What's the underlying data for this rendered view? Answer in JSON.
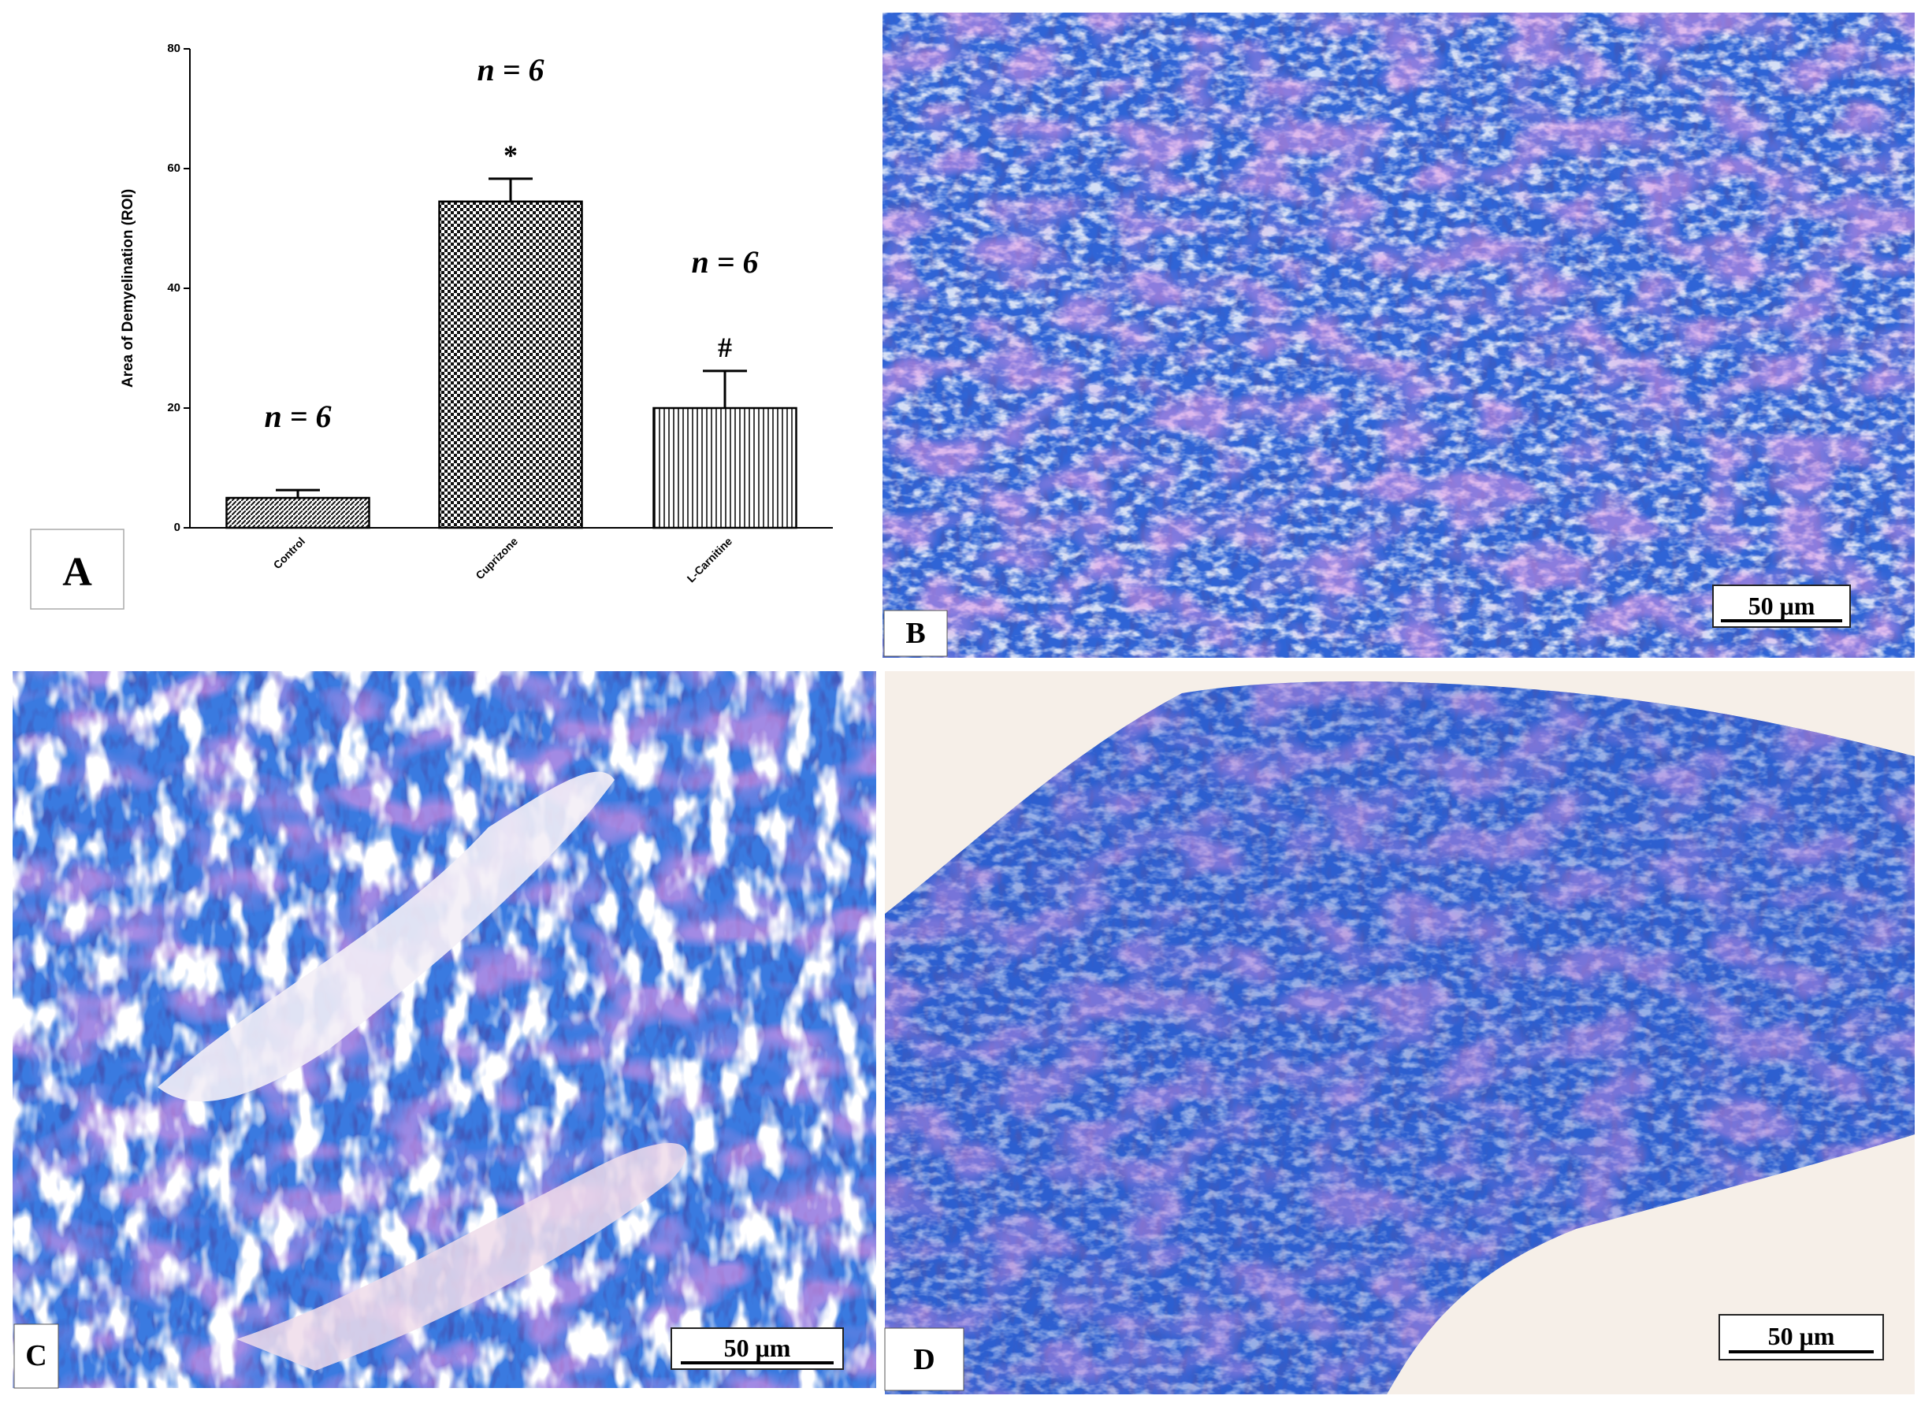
{
  "chart_data": {
    "type": "bar",
    "y_label": "Area of Demyelination (ROI)",
    "categories": [
      "Control",
      "Cuprizone",
      "L-Carnitine"
    ],
    "values": [
      5,
      54.5,
      20
    ],
    "errors": [
      1.3,
      3.8,
      6.2
    ],
    "patterns": [
      "diagonal",
      "checker",
      "vertical"
    ],
    "n_labels": [
      "n = 6",
      "n = 6",
      "n = 6"
    ],
    "sig_labels": [
      null,
      "*",
      "#"
    ],
    "ylim": [
      0,
      80
    ],
    "yticks": [
      0,
      20,
      40,
      60,
      80
    ],
    "panel_label": "A"
  },
  "panels": [
    {
      "label": "B",
      "scale_bar": "50 μm"
    },
    {
      "label": "C",
      "scale_bar": "50 μm"
    },
    {
      "label": "D",
      "scale_bar": "50 μm"
    }
  ]
}
